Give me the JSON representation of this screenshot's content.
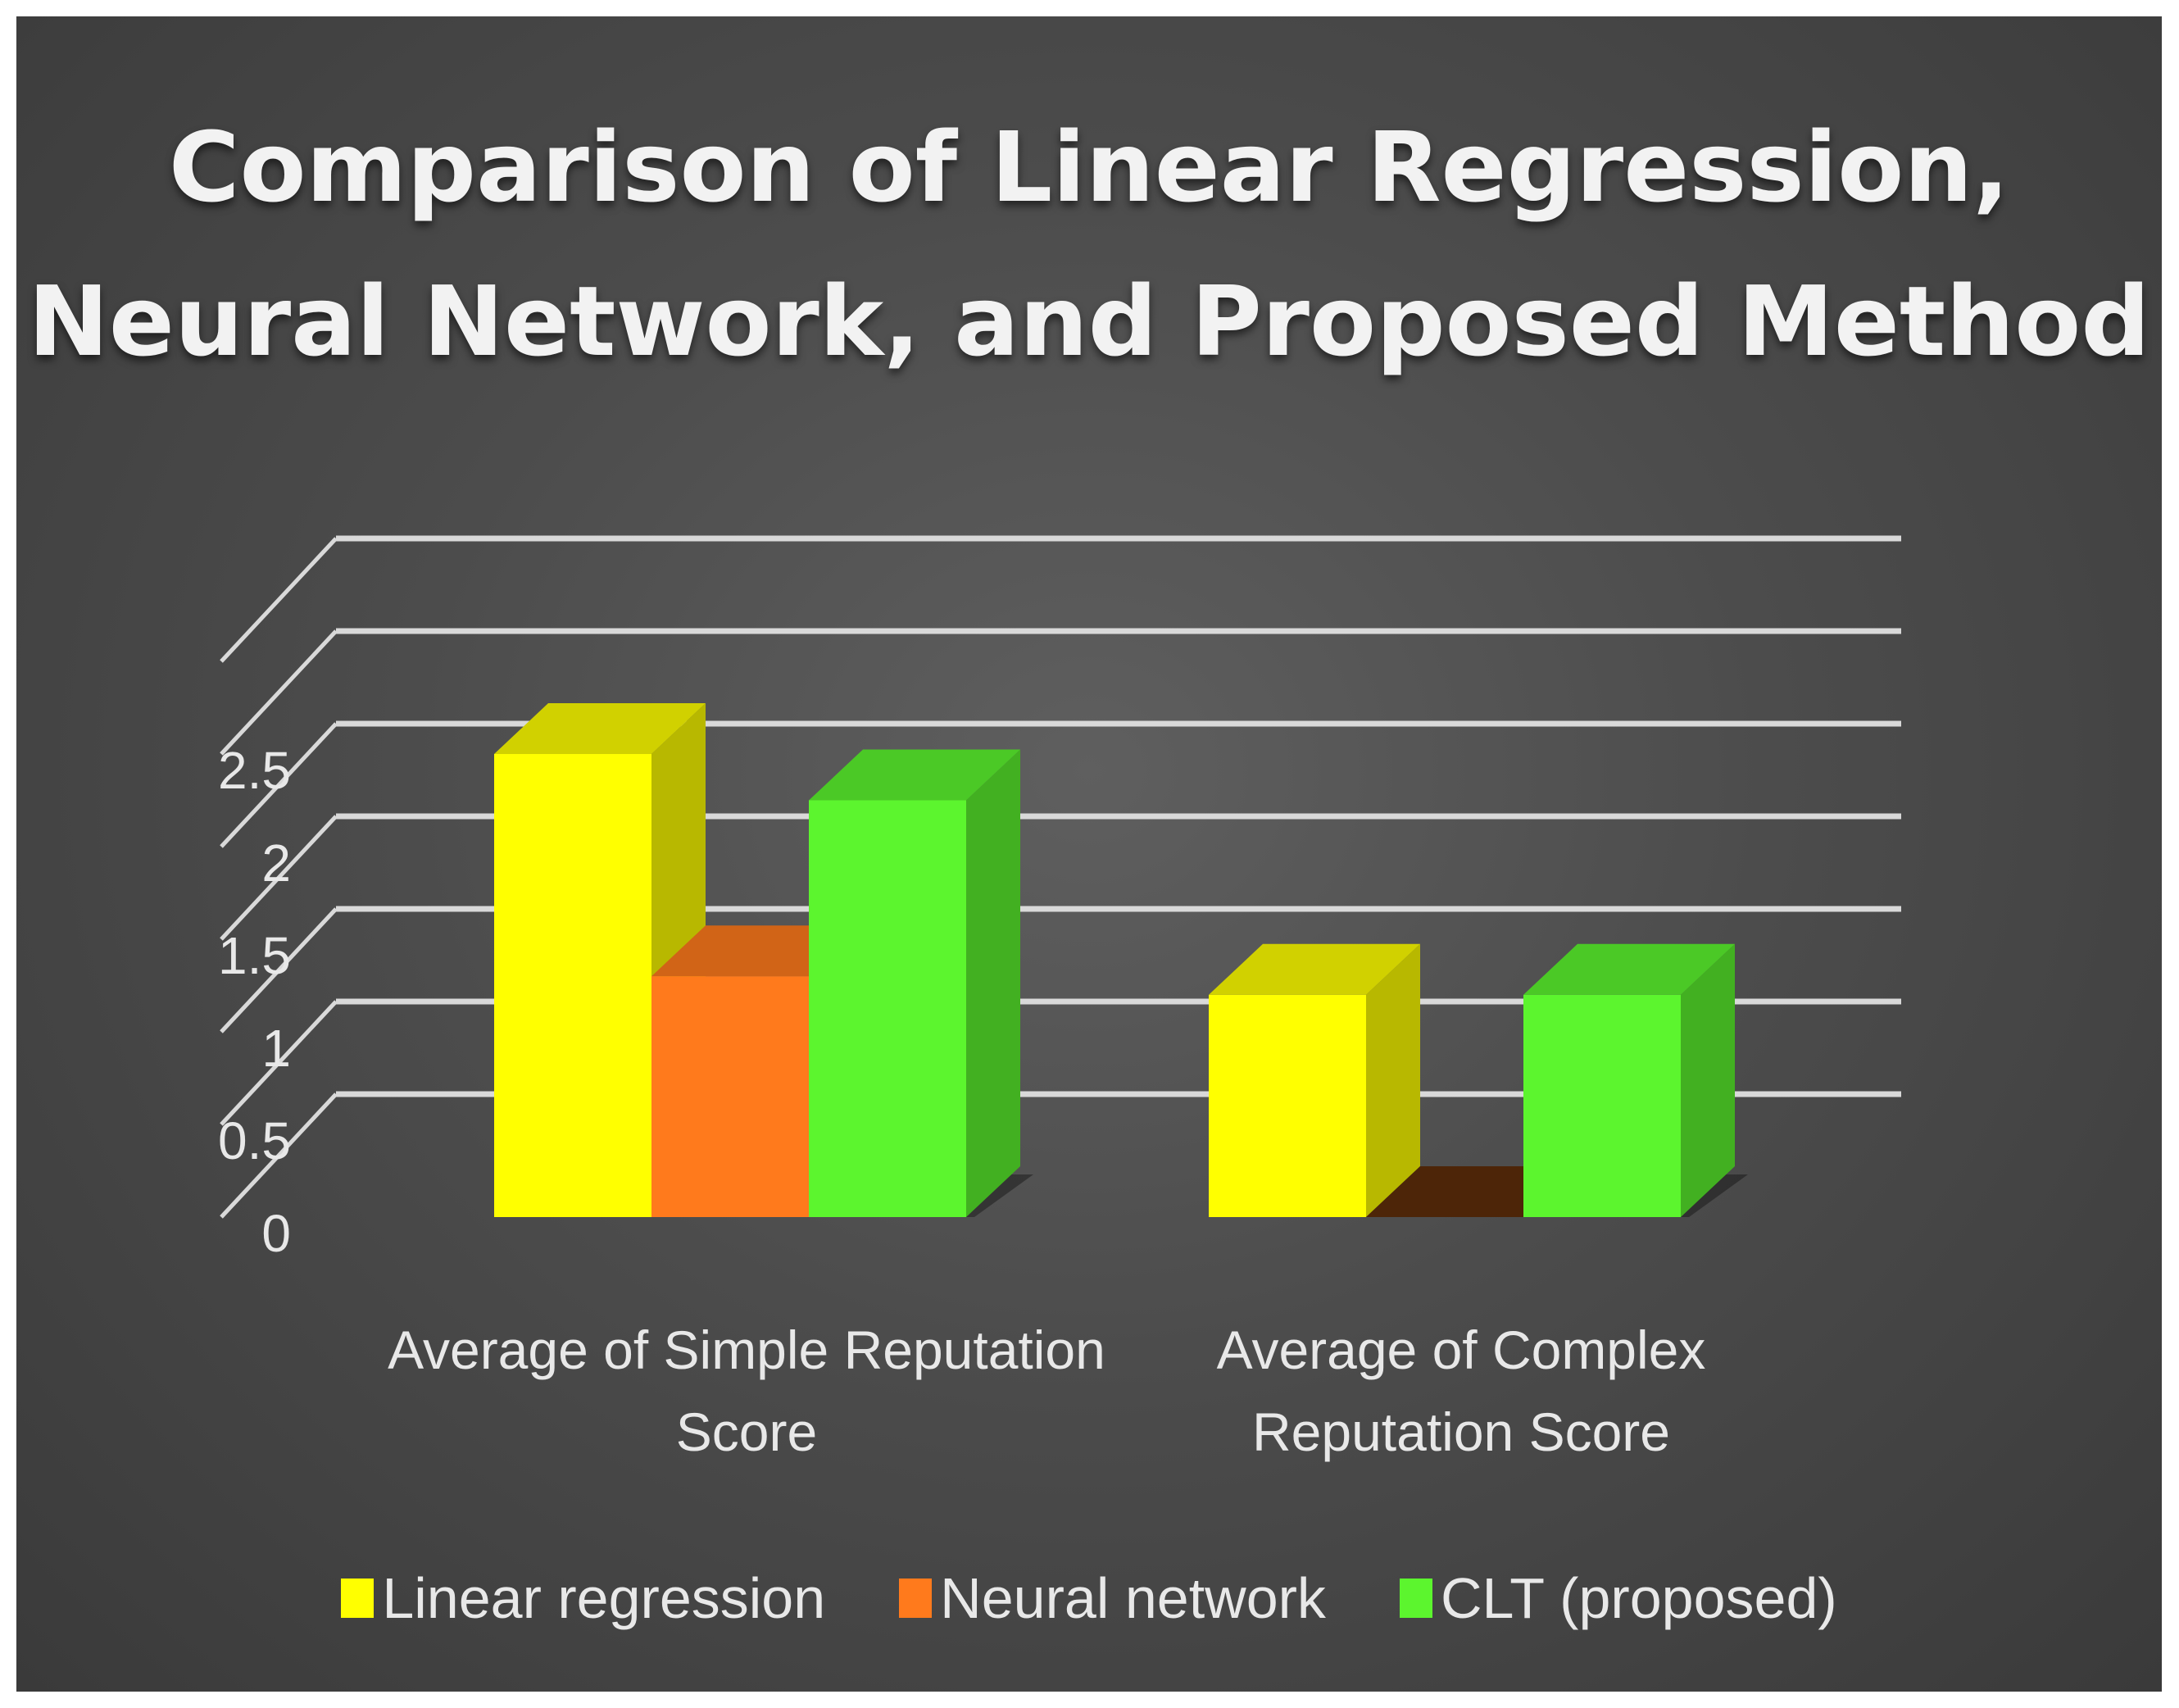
{
  "chart_data": {
    "type": "bar",
    "title": "Comparison of Linear Regression, Neural Network, and Proposed Method",
    "categories": [
      "Average of Simple Reputation Score",
      "Average of Complex Reputation Score"
    ],
    "category_lines": [
      [
        "Average of Simple Reputation",
        "Score"
      ],
      [
        "Average of Complex",
        "Reputation Score"
      ]
    ],
    "series": [
      {
        "name": "Linear regression",
        "values": [
          2.5,
          1.2
        ],
        "color": "#ffff00"
      },
      {
        "name": "Neural network",
        "values": [
          1.3,
          0.0
        ],
        "color": "#ff7a1c"
      },
      {
        "name": "CLT (proposed)",
        "values": [
          2.25,
          1.2
        ],
        "color": "#5cf52e"
      }
    ],
    "yticks": [
      "0",
      "0.5",
      "1",
      "1.5",
      "2",
      "2.5"
    ],
    "ylim": [
      0,
      3
    ],
    "grid": true,
    "legend_position": "bottom",
    "style": "3d-clustered-column"
  }
}
